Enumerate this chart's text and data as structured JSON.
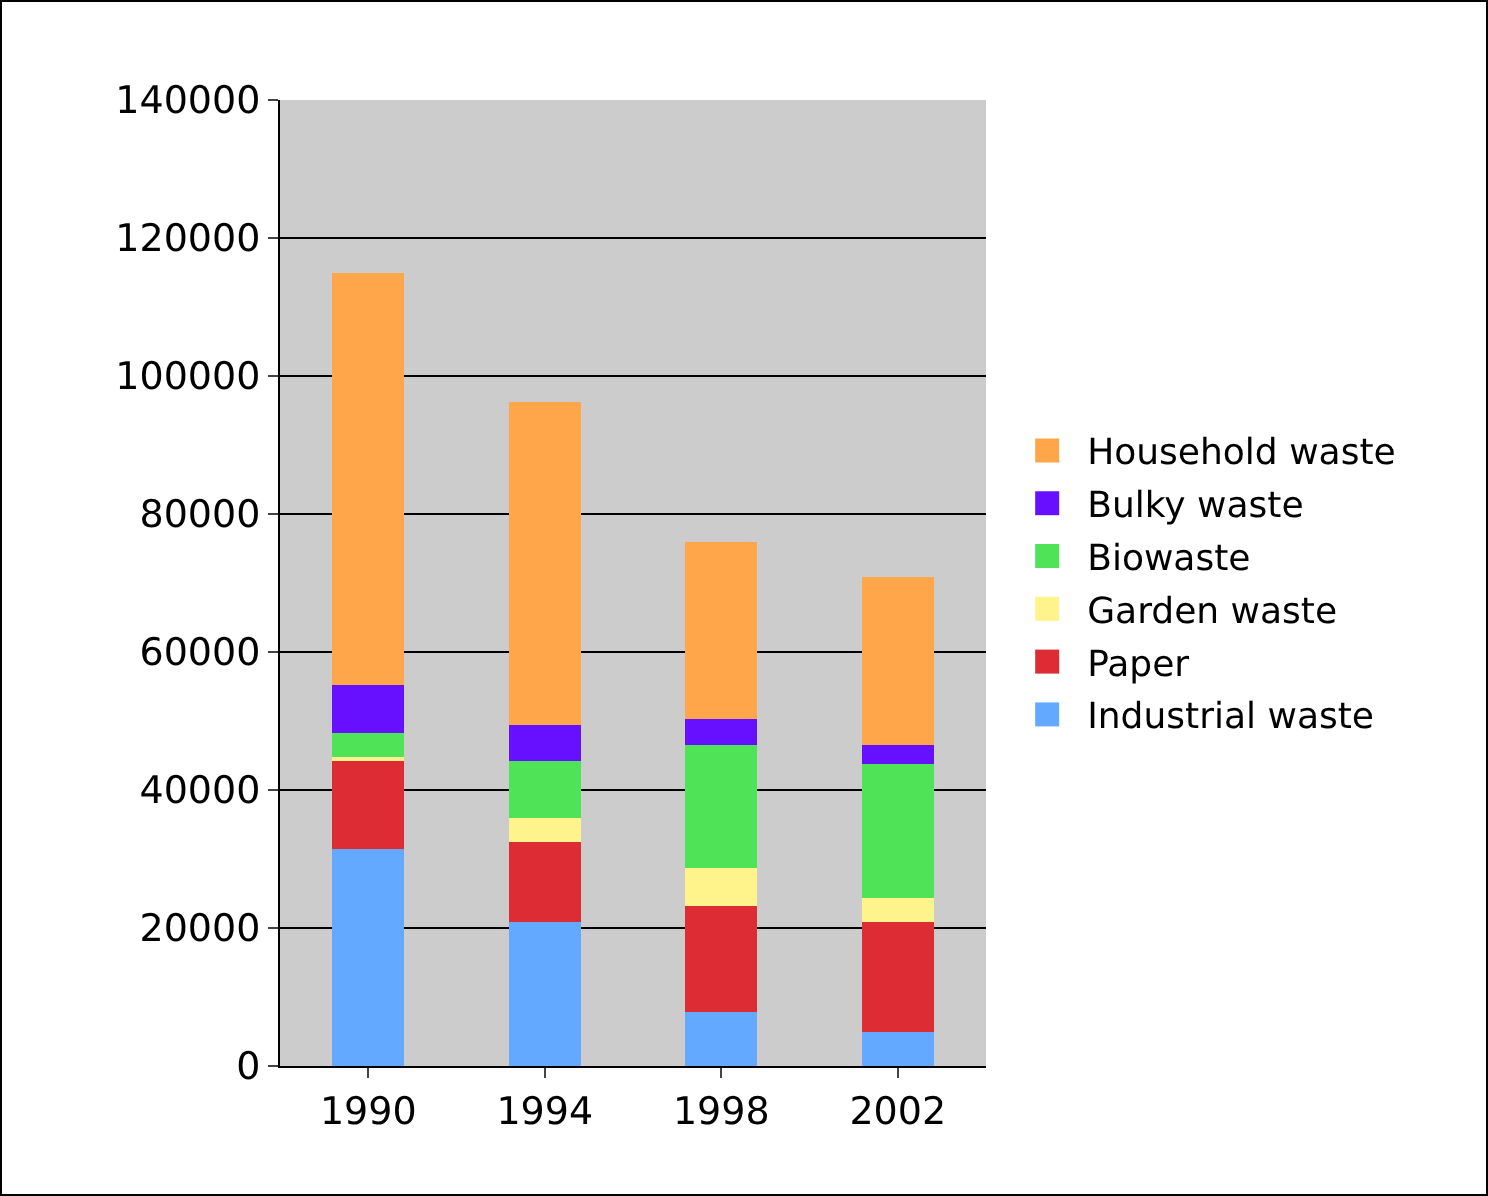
{
  "chart_data": {
    "type": "bar",
    "stacked": true,
    "categories": [
      "1990",
      "1994",
      "1998",
      "2002"
    ],
    "series": [
      {
        "name": "Industrial waste",
        "color": "#63a9ff",
        "values": [
          31500,
          20900,
          7900,
          5000
        ]
      },
      {
        "name": "Paper",
        "color": "#dd2c33",
        "values": [
          12700,
          11500,
          15300,
          15900
        ]
      },
      {
        "name": "Garden waste",
        "color": "#fff48c",
        "values": [
          600,
          3500,
          5500,
          3400
        ]
      },
      {
        "name": "Biowaste",
        "color": "#4fe357",
        "values": [
          3500,
          8300,
          17800,
          19400
        ]
      },
      {
        "name": "Bulky waste",
        "color": "#6610ff",
        "values": [
          6900,
          5200,
          3800,
          2800
        ]
      },
      {
        "name": "Household waste",
        "color": "#ffa64a",
        "values": [
          59700,
          46800,
          25700,
          24300
        ]
      }
    ],
    "ylim": [
      0,
      140000
    ],
    "yticks": [
      0,
      20000,
      40000,
      60000,
      80000,
      100000,
      120000,
      140000
    ],
    "grid": "y",
    "legend": "right"
  }
}
